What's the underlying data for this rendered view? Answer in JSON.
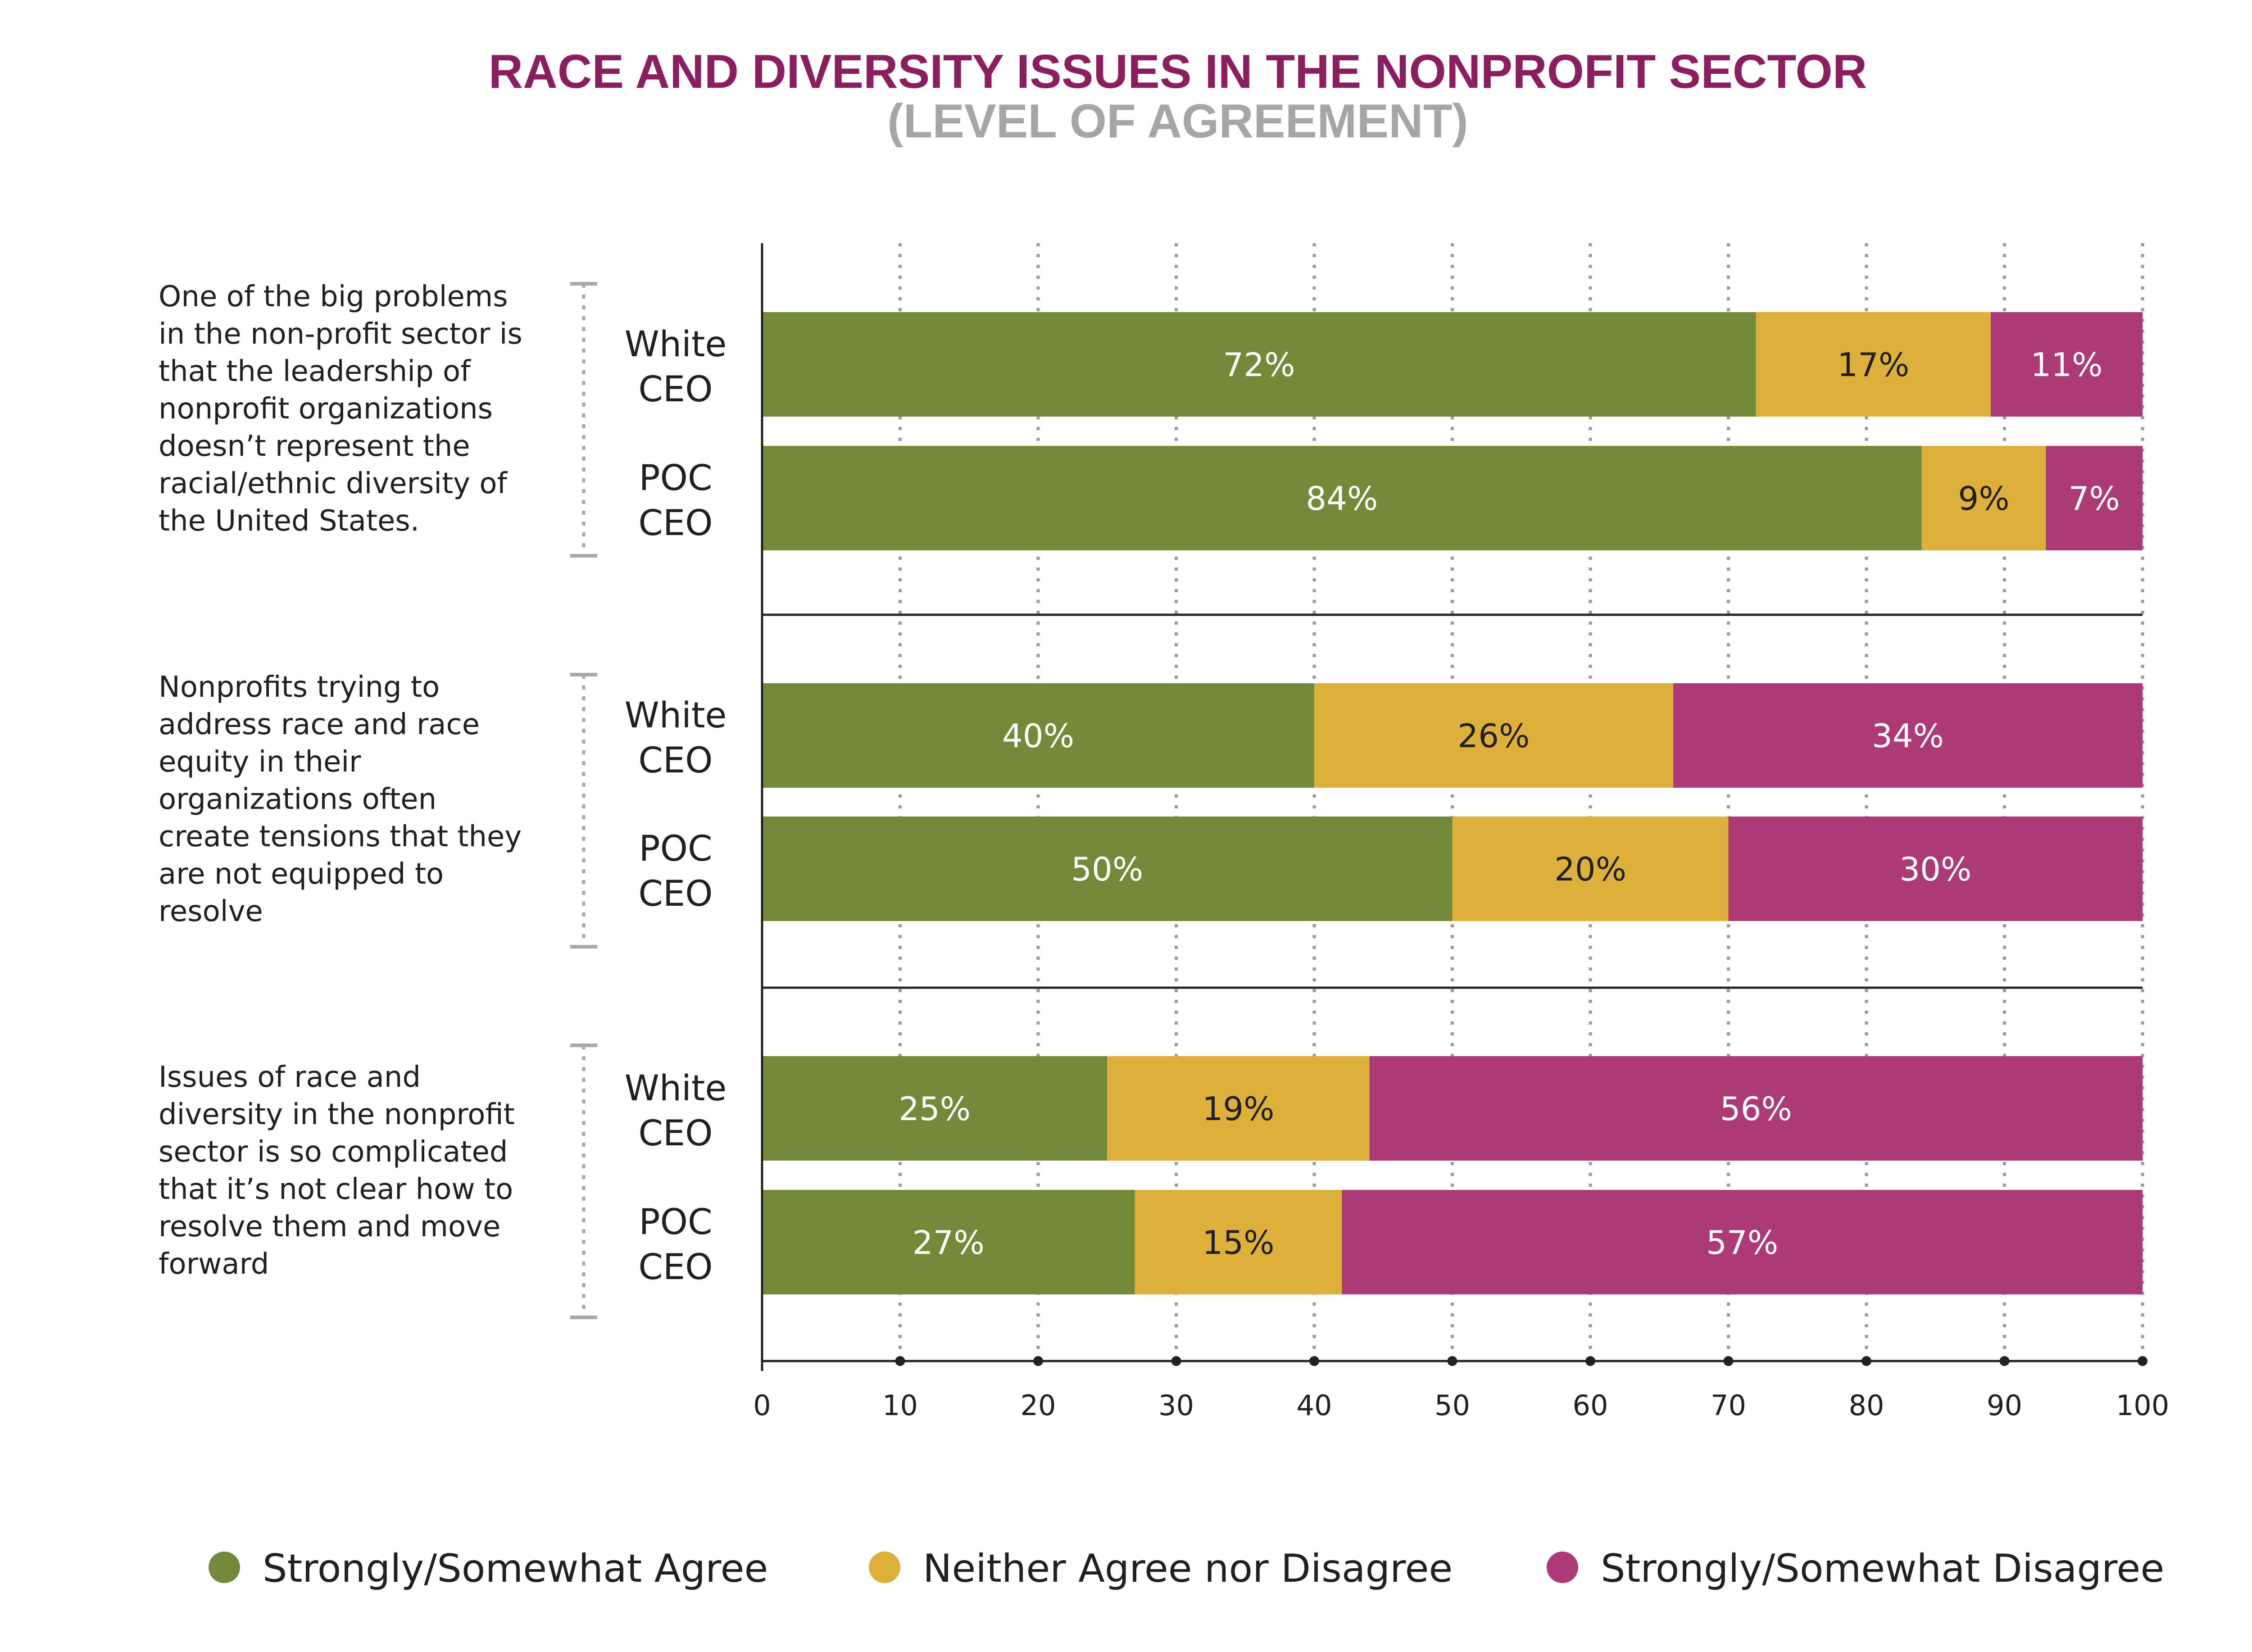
{
  "colors": {
    "agree": "#738a3a",
    "neutral": "#ddb03b",
    "disagree": "#ac3a76",
    "title": "#8b1e5e",
    "subtitle": "#a6a6a6"
  },
  "chart_data": {
    "type": "bar",
    "orientation": "horizontal",
    "stacked": true,
    "title": "RACE AND DIVERSITY ISSUES IN THE NONPROFIT SECTOR",
    "subtitle": "(LEVEL OF AGREEMENT)",
    "xlim": [
      0,
      100
    ],
    "xticks": [
      "0",
      "10",
      "20",
      "30",
      "40",
      "50",
      "60",
      "70",
      "80",
      "90",
      "100"
    ],
    "grid": "vertical dotted",
    "legend_position": "bottom",
    "series": [
      {
        "name": "Strongly/Somewhat Agree",
        "color_key": "agree"
      },
      {
        "name": "Neither Agree nor Disagree",
        "color_key": "neutral"
      },
      {
        "name": "Strongly/Somewhat Disagree",
        "color_key": "disagree"
      }
    ],
    "groups": [
      {
        "question": "One of the big problems in the non-profit sector is that the leadership of nonprofit organizations doesn’t represent the racial/ethnic diversity of the United States.",
        "question_lines": [
          "One of the big problems",
          "in the non-profit sector is",
          "that the leadership of",
          "nonprofit organizations",
          "doesn’t represent the",
          "racial/ethnic diversity of",
          "the United States."
        ],
        "bars": [
          {
            "label": [
              "White",
              "CEO"
            ],
            "values": [
              72,
              17,
              11
            ],
            "labels": [
              "72%",
              "17%",
              "11%"
            ]
          },
          {
            "label": [
              "POC",
              "CEO"
            ],
            "values": [
              84,
              9,
              7
            ],
            "labels": [
              "84%",
              "9%",
              "7%"
            ]
          }
        ]
      },
      {
        "question": "Nonprofits trying to address race and race equity in their organizations often create tensions that they are not equipped to resolve",
        "question_lines": [
          "Nonprofits trying to",
          "address race and race",
          "equity in their",
          "organizations often",
          "create tensions that they",
          "are not equipped to",
          "resolve"
        ],
        "bars": [
          {
            "label": [
              "White",
              "CEO"
            ],
            "values": [
              40,
              26,
              34
            ],
            "labels": [
              "40%",
              "26%",
              "34%"
            ]
          },
          {
            "label": [
              "POC",
              "CEO"
            ],
            "values": [
              50,
              20,
              30
            ],
            "labels": [
              "50%",
              "20%",
              "30%"
            ]
          }
        ]
      },
      {
        "question": "Issues of race and diversity in the nonprofit sector is so complicated that it’s not clear how to resolve them and move forward",
        "question_lines": [
          "Issues of race and",
          "diversity in the nonprofit",
          "sector is so complicated",
          "that it’s not clear how to",
          "resolve them and move",
          "forward"
        ],
        "bars": [
          {
            "label": [
              "White",
              "CEO"
            ],
            "values": [
              25,
              19,
              56
            ],
            "labels": [
              "25%",
              "19%",
              "56%"
            ]
          },
          {
            "label": [
              "POC",
              "CEO"
            ],
            "values": [
              27,
              15,
              57
            ],
            "labels": [
              "27%",
              "15%",
              "57%"
            ]
          }
        ]
      }
    ]
  }
}
